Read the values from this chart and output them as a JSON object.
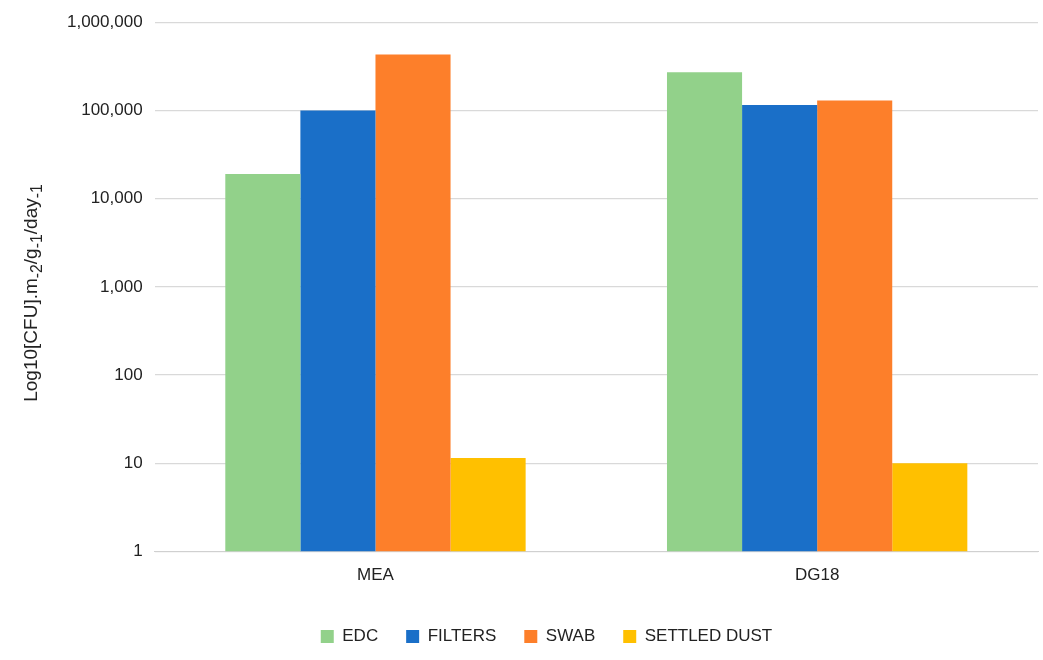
{
  "chart_data": {
    "type": "bar",
    "ylabel": "Log10[CFU].m$_{-2}$/g$_{-1}$/day$_{-1}$",
    "categories": [
      "MEA",
      "DG18"
    ],
    "series": [
      {
        "name": "EDC",
        "color": "#92d18a",
        "values": [
          19000,
          270000
        ]
      },
      {
        "name": "FILTERS",
        "color": "#1a6fc8",
        "values": [
          100000,
          115000
        ]
      },
      {
        "name": "SWAB",
        "color": "#fd7f2a",
        "values": [
          430000,
          130000
        ]
      },
      {
        "name": "SETTLED DUST",
        "color": "#ffc000",
        "values": [
          11.5,
          10
        ]
      }
    ],
    "log": "y",
    "ylim": [
      1,
      1000000
    ],
    "yticks": [
      1,
      10,
      100,
      {
        "value": 1000,
        "label": "1,000"
      },
      {
        "value": 10000,
        "label": "10,000"
      },
      {
        "value": 100000,
        "label": "100,000"
      },
      {
        "value": 1000000,
        "label": "1,000,000"
      }
    ],
    "grid": "y",
    "legend": "bottom"
  }
}
